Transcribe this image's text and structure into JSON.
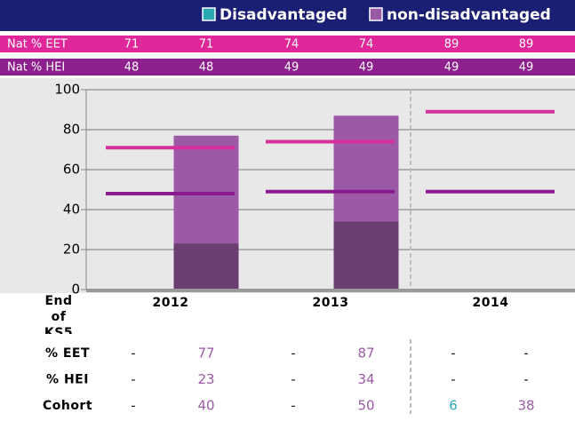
{
  "chart_data": {
    "type": "bar",
    "series": [
      {
        "name": "Disadvantaged",
        "color": "#2aa9b5"
      },
      {
        "name": "non-disadvantaged",
        "color": "#9b59a6"
      }
    ],
    "nat_rows": [
      {
        "label": "Nat % EET",
        "color": "#e0279a",
        "line_color": "#d6309a",
        "values": [
          71,
          71,
          74,
          74,
          89,
          89
        ]
      },
      {
        "label": "Nat % HEI",
        "color": "#8e1f8e",
        "line_color": "#8a1a8e",
        "values": [
          48,
          48,
          49,
          49,
          49,
          49
        ]
      }
    ],
    "ylim": [
      0,
      100
    ],
    "yticks": [
      0,
      20,
      40,
      60,
      80,
      100
    ],
    "grid": true,
    "x_label": "End of KS5",
    "categories": [
      "2012",
      "2013",
      "2014"
    ],
    "table": {
      "rows": [
        {
          "label": "% EET",
          "bar_color": "#9b59a6",
          "values": [
            "-",
            77,
            "-",
            87,
            "-",
            "-"
          ]
        },
        {
          "label": "% HEI",
          "bar_color": "#6b3e72",
          "values": [
            "-",
            23,
            "-",
            34,
            "-",
            "-"
          ]
        },
        {
          "label": "Cohort",
          "values": [
            "-",
            40,
            "-",
            50,
            6,
            38
          ]
        }
      ]
    }
  }
}
